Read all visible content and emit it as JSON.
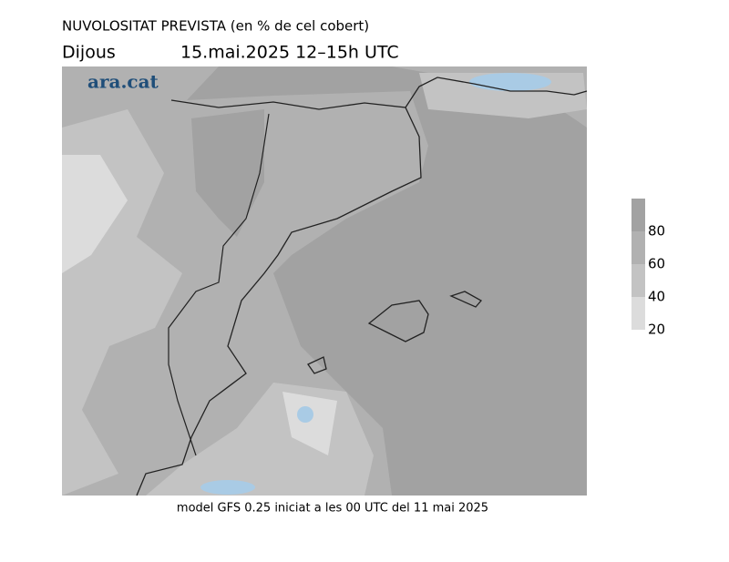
{
  "header": {
    "title": "NUVOLOSITAT PREVISTA (en % de cel cobert)",
    "day": "Dijous",
    "date": "15.mai.2025 12–15h UTC"
  },
  "logo": "ara.cat",
  "colorbar": {
    "ticks": [
      20,
      40,
      60,
      80
    ],
    "colors": [
      "#dcdcdc",
      "#c3c3c3",
      "#b1b1b1",
      "#a2a2a2"
    ]
  },
  "footer": "model GFS 0.25 iniciat a les 00 UTC del 11 mai 2025"
}
